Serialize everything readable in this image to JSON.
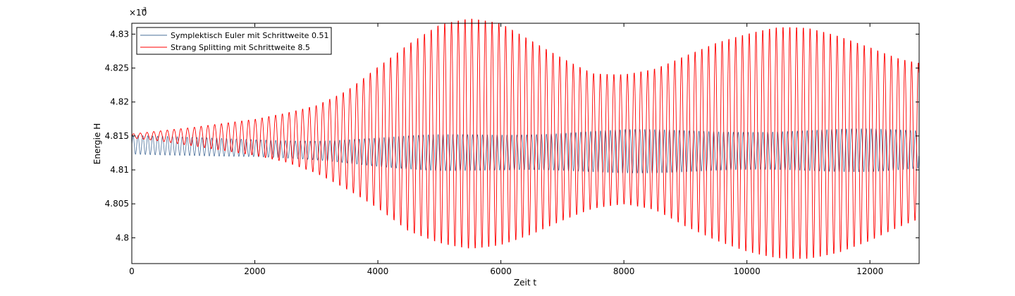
{
  "chart_data": {
    "type": "line",
    "title": "",
    "xlabel": "Zeit t",
    "ylabel": "Energie H",
    "y_exponent_label": "×10",
    "y_exponent_power": "-3",
    "xlim": [
      0,
      12800
    ],
    "ylim": [
      4.7962,
      4.8316
    ],
    "xticks": [
      0,
      2000,
      4000,
      6000,
      8000,
      10000,
      12000
    ],
    "yticks": [
      4.8,
      4.805,
      4.81,
      4.815,
      4.82,
      4.825,
      4.83
    ],
    "ytick_labels": [
      "4.8",
      "4.805",
      "4.81",
      "4.815",
      "4.82",
      "4.825",
      "4.83"
    ],
    "grid": false,
    "legend_position": "top-left",
    "series": [
      {
        "name": "Symplektisch Euler mit Schrittweite 0.51",
        "color": "#4a6f9a",
        "period": 80,
        "x": [
          0,
          1000,
          2000,
          3000,
          4000,
          5000,
          6000,
          7000,
          8000,
          9000,
          10000,
          11000,
          12000,
          12800
        ],
        "upper": [
          4.8152,
          4.8148,
          4.8146,
          4.8145,
          4.8148,
          4.8153,
          4.8156,
          4.8158,
          4.816,
          4.816,
          4.8161,
          4.8161,
          4.8161,
          4.816
        ],
        "lower": [
          4.8122,
          4.8121,
          4.8118,
          4.8112,
          4.8104,
          4.8098,
          4.8095,
          4.8095,
          4.8095,
          4.8095,
          4.8095,
          4.8096,
          4.8097,
          4.81
        ]
      },
      {
        "name": "Strang Splitting mit Schrittweite 8.5",
        "color": "#ff0000",
        "period": 110,
        "x": [
          0,
          500,
          1000,
          1500,
          2000,
          2500,
          3000,
          3500,
          4000,
          4500,
          5000,
          5500,
          6000,
          6500,
          7000,
          7500,
          8000,
          8500,
          9000,
          9500,
          10000,
          10500,
          11000,
          11500,
          12000,
          12500,
          12800
        ],
        "upper": [
          4.8153,
          4.8158,
          4.8163,
          4.817,
          4.8178,
          4.819,
          4.8205,
          4.823,
          4.8265,
          4.8295,
          4.8318,
          4.8325,
          4.832,
          4.83,
          4.828,
          4.826,
          4.826,
          4.8268,
          4.8285,
          4.8298,
          4.8305,
          4.8312,
          4.8313,
          4.8307,
          4.8298,
          4.8285,
          4.828
        ],
        "lower": [
          4.8147,
          4.8142,
          4.8135,
          4.8127,
          4.8118,
          4.8105,
          4.8085,
          4.8058,
          4.803,
          4.8,
          4.7988,
          4.7982,
          4.7985,
          4.7995,
          4.801,
          4.8025,
          4.803,
          4.8022,
          4.8,
          4.7985,
          4.7975,
          4.7968,
          4.7965,
          4.7968,
          4.7978,
          4.7995,
          4.8005
        ]
      }
    ]
  }
}
